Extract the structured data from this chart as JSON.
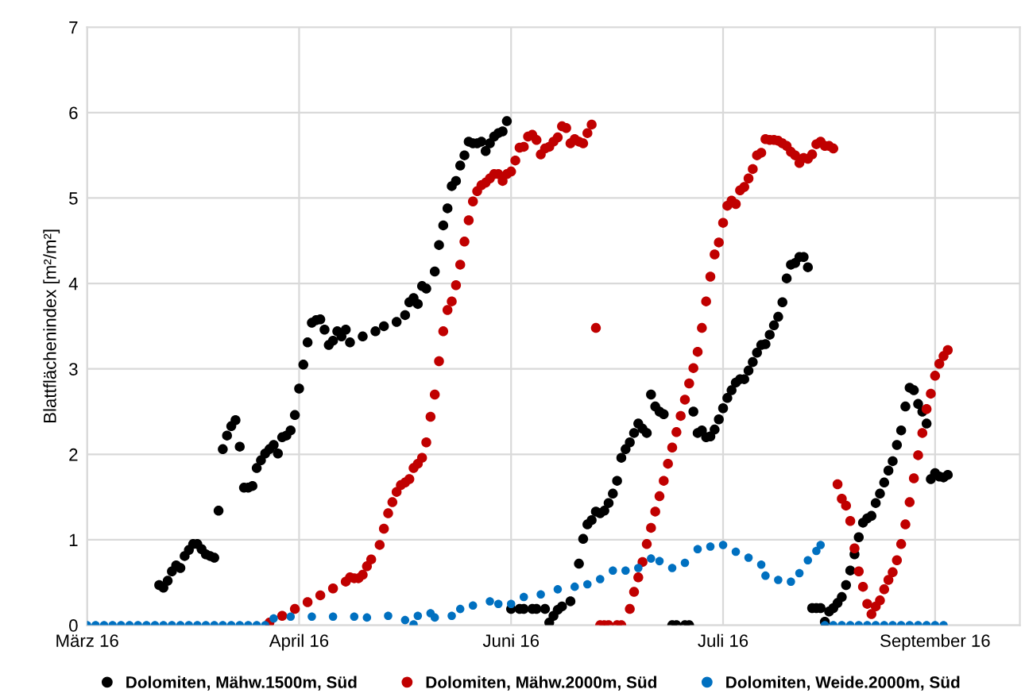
{
  "chart_data": {
    "type": "scatter",
    "ylabel": "Blattflächenindex [m²/m²]",
    "xlim": [
      "2016-03-01",
      "2016-10-07"
    ],
    "ylim": [
      0,
      7
    ],
    "yticks": [
      0,
      1,
      2,
      3,
      4,
      5,
      6,
      7
    ],
    "xticks": [
      {
        "value": "2016-03-01",
        "label": "März 16"
      },
      {
        "value": "2016-04-20",
        "label": "April 16"
      },
      {
        "value": "2016-06-09",
        "label": "Juni 16"
      },
      {
        "value": "2016-07-29",
        "label": "Juli 16"
      },
      {
        "value": "2016-09-17",
        "label": "September 16"
      }
    ],
    "grid": true,
    "legend": "bottom",
    "marker": "circle",
    "series": [
      {
        "name": "Dolomiten, Mähw.1500m, Süd",
        "color": "#000000",
        "x": [
          "2016-03-18",
          "2016-03-19",
          "2016-03-20",
          "2016-03-21",
          "2016-03-22",
          "2016-03-23",
          "2016-03-24",
          "2016-03-25",
          "2016-03-26",
          "2016-03-27",
          "2016-03-28",
          "2016-03-29",
          "2016-03-30",
          "2016-03-31",
          "2016-04-01",
          "2016-04-02",
          "2016-04-03",
          "2016-04-04",
          "2016-04-05",
          "2016-04-06",
          "2016-04-07",
          "2016-04-08",
          "2016-04-09",
          "2016-04-10",
          "2016-04-11",
          "2016-04-12",
          "2016-04-13",
          "2016-04-14",
          "2016-04-15",
          "2016-04-16",
          "2016-04-17",
          "2016-04-18",
          "2016-04-19",
          "2016-04-20",
          "2016-04-21",
          "2016-04-22",
          "2016-04-23",
          "2016-04-24",
          "2016-04-25",
          "2016-04-26",
          "2016-04-27",
          "2016-04-28",
          "2016-04-29",
          "2016-04-30",
          "2016-05-01",
          "2016-05-02",
          "2016-05-05",
          "2016-05-08",
          "2016-05-10",
          "2016-05-13",
          "2016-05-15",
          "2016-05-16",
          "2016-05-17",
          "2016-05-18",
          "2016-05-19",
          "2016-05-20",
          "2016-05-22",
          "2016-05-23",
          "2016-05-24",
          "2016-05-25",
          "2016-05-26",
          "2016-05-27",
          "2016-05-28",
          "2016-05-29",
          "2016-05-30",
          "2016-05-31",
          "2016-06-01",
          "2016-06-02",
          "2016-06-03",
          "2016-06-04",
          "2016-06-05",
          "2016-06-06",
          "2016-06-07",
          "2016-06-08",
          "2016-06-09",
          "2016-06-11",
          "2016-06-12",
          "2016-06-14",
          "2016-06-15",
          "2016-06-17",
          "2016-06-18",
          "2016-06-19",
          "2016-06-20",
          "2016-06-21",
          "2016-06-23",
          "2016-06-25",
          "2016-06-26",
          "2016-06-27",
          "2016-06-28",
          "2016-06-29",
          "2016-06-30",
          "2016-07-01",
          "2016-07-02",
          "2016-07-03",
          "2016-07-04",
          "2016-07-05",
          "2016-07-06",
          "2016-07-07",
          "2016-07-08",
          "2016-07-09",
          "2016-07-10",
          "2016-07-11",
          "2016-07-12",
          "2016-07-13",
          "2016-07-14",
          "2016-07-15",
          "2016-07-17",
          "2016-07-18",
          "2016-07-20",
          "2016-07-21",
          "2016-07-22",
          "2016-07-23",
          "2016-07-24",
          "2016-07-25",
          "2016-07-26",
          "2016-07-27",
          "2016-07-28",
          "2016-07-29",
          "2016-07-30",
          "2016-07-31",
          "2016-08-01",
          "2016-08-02",
          "2016-08-03",
          "2016-08-04",
          "2016-08-05",
          "2016-08-06",
          "2016-08-07",
          "2016-08-08",
          "2016-08-09",
          "2016-08-10",
          "2016-08-11",
          "2016-08-12",
          "2016-08-13",
          "2016-08-14",
          "2016-08-15",
          "2016-08-16",
          "2016-08-17",
          "2016-08-18",
          "2016-08-19",
          "2016-08-20",
          "2016-08-21",
          "2016-08-22",
          "2016-08-23",
          "2016-08-24",
          "2016-08-25",
          "2016-08-26",
          "2016-08-27",
          "2016-08-28",
          "2016-08-29",
          "2016-08-30",
          "2016-08-31",
          "2016-09-01",
          "2016-09-02",
          "2016-09-03",
          "2016-09-04",
          "2016-09-05",
          "2016-09-06",
          "2016-09-07",
          "2016-09-08",
          "2016-09-09",
          "2016-09-10",
          "2016-09-11",
          "2016-09-12",
          "2016-09-13",
          "2016-09-14",
          "2016-09-15",
          "2016-09-16",
          "2016-09-17",
          "2016-09-18",
          "2016-09-19",
          "2016-09-20"
        ],
        "values": [
          0.47,
          0.44,
          0.52,
          0.63,
          0.7,
          0.67,
          0.81,
          0.88,
          0.95,
          0.95,
          0.89,
          0.83,
          0.81,
          0.79,
          1.34,
          2.06,
          2.22,
          2.33,
          2.4,
          2.09,
          1.61,
          1.61,
          1.63,
          1.84,
          1.93,
          2.01,
          2.06,
          2.11,
          2.01,
          2.2,
          2.22,
          2.28,
          2.46,
          2.77,
          3.05,
          3.31,
          3.54,
          3.57,
          3.58,
          3.46,
          3.28,
          3.33,
          3.44,
          3.38,
          3.46,
          3.31,
          3.38,
          3.44,
          3.5,
          3.55,
          3.63,
          3.78,
          3.83,
          3.76,
          3.97,
          3.94,
          4.14,
          4.45,
          4.68,
          4.88,
          5.14,
          5.2,
          5.38,
          5.5,
          5.66,
          5.64,
          5.64,
          5.66,
          5.55,
          5.64,
          5.72,
          5.76,
          5.78,
          5.9,
          0.19,
          0.19,
          0.19,
          0.19,
          0.19,
          0.19,
          0.03,
          0.11,
          0.18,
          0.22,
          0.28,
          0.72,
          1.01,
          1.18,
          1.23,
          1.33,
          1.31,
          1.34,
          1.43,
          1.54,
          1.69,
          1.96,
          2.06,
          2.14,
          2.25,
          2.36,
          2.3,
          2.25,
          2.7,
          2.56,
          2.5,
          2.47,
          0,
          0,
          0,
          0,
          2.5,
          2.25,
          2.28,
          2.2,
          2.21,
          2.29,
          2.41,
          2.54,
          2.66,
          2.75,
          2.84,
          2.88,
          2.88,
          2.98,
          3.08,
          3.19,
          3.28,
          3.29,
          3.4,
          3.51,
          3.61,
          3.78,
          4.06,
          4.22,
          4.24,
          4.31,
          4.31,
          4.19,
          0.2,
          0.2,
          0.2,
          0.04,
          0.16,
          0.2,
          0.26,
          0.33,
          0.47,
          0.64,
          0.83,
          1.03,
          1.2,
          1.25,
          1.28,
          1.43,
          1.54,
          1.67,
          1.81,
          1.92,
          2.11,
          2.28,
          2.56,
          2.78,
          2.75,
          2.59,
          2.5,
          2.36,
          1.71,
          1.78,
          1.74,
          1.73,
          1.76
        ]
      },
      {
        "name": "Dolomiten, Mähw.2000m, Süd",
        "color": "#c00000",
        "x": [
          "2016-04-13",
          "2016-04-16",
          "2016-04-19",
          "2016-04-22",
          "2016-04-25",
          "2016-04-28",
          "2016-05-01",
          "2016-05-02",
          "2016-05-03",
          "2016-05-04",
          "2016-05-05",
          "2016-05-06",
          "2016-05-07",
          "2016-05-09",
          "2016-05-10",
          "2016-05-11",
          "2016-05-12",
          "2016-05-13",
          "2016-05-14",
          "2016-05-15",
          "2016-05-16",
          "2016-05-17",
          "2016-05-18",
          "2016-05-19",
          "2016-05-20",
          "2016-05-21",
          "2016-05-22",
          "2016-05-23",
          "2016-05-24",
          "2016-05-25",
          "2016-05-26",
          "2016-05-27",
          "2016-05-28",
          "2016-05-29",
          "2016-05-30",
          "2016-05-31",
          "2016-06-01",
          "2016-06-02",
          "2016-06-03",
          "2016-06-04",
          "2016-06-05",
          "2016-06-06",
          "2016-06-07",
          "2016-06-08",
          "2016-06-09",
          "2016-06-10",
          "2016-06-11",
          "2016-06-12",
          "2016-06-13",
          "2016-06-14",
          "2016-06-15",
          "2016-06-16",
          "2016-06-17",
          "2016-06-18",
          "2016-06-19",
          "2016-06-20",
          "2016-06-21",
          "2016-06-22",
          "2016-06-23",
          "2016-06-24",
          "2016-06-25",
          "2016-06-26",
          "2016-06-27",
          "2016-06-28",
          "2016-06-29",
          "2016-06-30",
          "2016-07-01",
          "2016-07-02",
          "2016-07-04",
          "2016-07-05",
          "2016-07-07",
          "2016-07-08",
          "2016-07-09",
          "2016-07-10",
          "2016-07-11",
          "2016-07-12",
          "2016-07-13",
          "2016-07-14",
          "2016-07-15",
          "2016-07-16",
          "2016-07-17",
          "2016-07-18",
          "2016-07-19",
          "2016-07-20",
          "2016-07-21",
          "2016-07-22",
          "2016-07-23",
          "2016-07-24",
          "2016-07-25",
          "2016-07-26",
          "2016-07-27",
          "2016-07-28",
          "2016-07-29",
          "2016-07-30",
          "2016-07-31",
          "2016-08-01",
          "2016-08-02",
          "2016-08-03",
          "2016-08-04",
          "2016-08-05",
          "2016-08-06",
          "2016-08-07",
          "2016-08-08",
          "2016-08-09",
          "2016-08-10",
          "2016-08-11",
          "2016-08-12",
          "2016-08-13",
          "2016-08-14",
          "2016-08-15",
          "2016-08-16",
          "2016-08-17",
          "2016-08-18",
          "2016-08-19",
          "2016-08-20",
          "2016-08-21",
          "2016-08-22",
          "2016-08-23",
          "2016-08-24",
          "2016-08-25",
          "2016-08-26",
          "2016-08-27",
          "2016-08-28",
          "2016-08-29",
          "2016-08-30",
          "2016-08-31",
          "2016-09-01",
          "2016-09-02",
          "2016-09-03",
          "2016-09-04",
          "2016-09-05",
          "2016-09-06",
          "2016-09-07",
          "2016-09-08",
          "2016-09-09",
          "2016-09-10",
          "2016-09-11",
          "2016-09-12",
          "2016-09-13",
          "2016-09-14",
          "2016-09-15",
          "2016-09-16",
          "2016-09-17",
          "2016-09-18",
          "2016-09-19",
          "2016-09-20"
        ],
        "values": [
          0.03,
          0.11,
          0.19,
          0.27,
          0.35,
          0.43,
          0.51,
          0.56,
          0.55,
          0.55,
          0.59,
          0.69,
          0.77,
          0.94,
          1.13,
          1.31,
          1.44,
          1.56,
          1.64,
          1.67,
          1.71,
          1.84,
          1.89,
          1.96,
          2.14,
          2.44,
          2.7,
          3.09,
          3.44,
          3.69,
          3.79,
          3.98,
          4.22,
          4.49,
          4.74,
          4.96,
          5.08,
          5.15,
          5.18,
          5.23,
          5.28,
          5.28,
          5.2,
          5.28,
          5.31,
          5.44,
          5.59,
          5.6,
          5.72,
          5.74,
          5.68,
          5.51,
          5.58,
          5.6,
          5.66,
          5.71,
          5.84,
          5.82,
          5.64,
          5.69,
          5.66,
          5.64,
          5.76,
          5.86,
          3.48,
          0,
          0,
          0,
          0,
          0,
          0.19,
          0.39,
          0.56,
          0.74,
          0.95,
          1.14,
          1.33,
          1.51,
          1.69,
          1.89,
          2.08,
          2.26,
          2.45,
          2.64,
          2.83,
          3.01,
          3.2,
          3.48,
          3.79,
          4.08,
          4.34,
          4.48,
          4.71,
          4.91,
          4.97,
          4.93,
          5.09,
          5.13,
          5.23,
          5.34,
          5.5,
          5.53,
          5.69,
          5.68,
          5.68,
          5.67,
          5.64,
          5.61,
          5.54,
          5.5,
          5.41,
          5.47,
          5.46,
          5.51,
          5.63,
          5.66,
          5.61,
          5.61,
          5.58,
          1.65,
          1.48,
          1.4,
          1.22,
          0.9,
          0.63,
          0.45,
          0.25,
          0.13,
          0.22,
          0.29,
          0.42,
          0.53,
          0.62,
          0.76,
          0.95,
          1.18,
          1.44,
          1.72,
          1.99,
          2.25,
          2.53,
          2.71,
          2.92,
          3.06,
          3.15,
          3.22
        ]
      },
      {
        "name": "Dolomiten, Weide.2000m, Süd",
        "color": "#0070c0",
        "x": [
          "2016-03-01",
          "2016-03-03",
          "2016-03-05",
          "2016-03-07",
          "2016-03-09",
          "2016-03-11",
          "2016-03-13",
          "2016-03-15",
          "2016-03-17",
          "2016-03-19",
          "2016-03-21",
          "2016-03-23",
          "2016-03-25",
          "2016-03-27",
          "2016-03-29",
          "2016-03-31",
          "2016-04-02",
          "2016-04-04",
          "2016-04-06",
          "2016-04-08",
          "2016-04-10",
          "2016-04-12",
          "2016-04-14",
          "2016-04-18",
          "2016-04-23",
          "2016-04-28",
          "2016-05-03",
          "2016-05-06",
          "2016-05-11",
          "2016-05-15",
          "2016-05-17",
          "2016-05-18",
          "2016-05-21",
          "2016-05-22",
          "2016-05-26",
          "2016-05-28",
          "2016-05-31",
          "2016-06-04",
          "2016-06-06",
          "2016-06-09",
          "2016-06-12",
          "2016-06-16",
          "2016-06-20",
          "2016-06-24",
          "2016-06-27",
          "2016-06-30",
          "2016-07-03",
          "2016-07-06",
          "2016-07-09",
          "2016-07-12",
          "2016-07-14",
          "2016-07-17",
          "2016-07-20",
          "2016-07-23",
          "2016-07-26",
          "2016-07-29",
          "2016-08-01",
          "2016-08-04",
          "2016-08-07",
          "2016-08-08",
          "2016-08-11",
          "2016-08-14",
          "2016-08-16",
          "2016-08-18",
          "2016-08-20",
          "2016-08-21",
          "2016-08-22",
          "2016-08-24",
          "2016-08-26",
          "2016-08-28",
          "2016-08-30",
          "2016-09-01",
          "2016-09-03",
          "2016-09-05",
          "2016-09-07",
          "2016-09-09",
          "2016-09-11",
          "2016-09-13",
          "2016-09-15",
          "2016-09-17",
          "2016-09-19"
        ],
        "values": [
          0,
          0,
          0,
          0,
          0,
          0,
          0,
          0,
          0,
          0,
          0,
          0,
          0,
          0,
          0,
          0,
          0,
          0,
          0,
          0,
          0,
          0,
          0.08,
          0.1,
          0.1,
          0.1,
          0.1,
          0.09,
          0.11,
          0.06,
          0.01,
          0.11,
          0.14,
          0.09,
          0.11,
          0.19,
          0.23,
          0.28,
          0.25,
          0.25,
          0.33,
          0.36,
          0.42,
          0.45,
          0.48,
          0.54,
          0.64,
          0.64,
          0.67,
          0.78,
          0.75,
          0.67,
          0.73,
          0.89,
          0.92,
          0.94,
          0.86,
          0.79,
          0.71,
          0.58,
          0.53,
          0.51,
          0.61,
          0.76,
          0.87,
          0.94,
          0,
          0,
          0,
          0,
          0,
          0,
          0,
          0,
          0,
          0,
          0,
          0,
          0,
          0,
          0
        ]
      }
    ]
  }
}
